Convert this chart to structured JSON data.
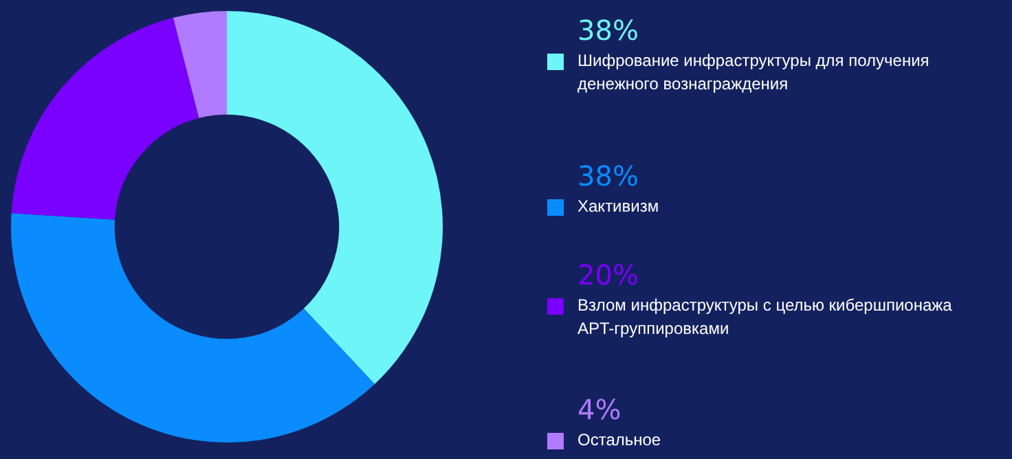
{
  "chart_data": {
    "type": "donut",
    "categories": [
      "Шифрование инфраструктуры для получения денежного вознаграждения",
      "Хактивизм",
      "Взлом инфраструктуры с целью кибершпионажа APT-группировками",
      "Остальное"
    ],
    "values": [
      38,
      38,
      20,
      4
    ],
    "colors": [
      "#6ef5f7",
      "#0a8cff",
      "#7a00ff",
      "#b07bff"
    ],
    "value_labels": [
      "38%",
      "38%",
      "20%",
      "4%"
    ],
    "legend": "right"
  }
}
